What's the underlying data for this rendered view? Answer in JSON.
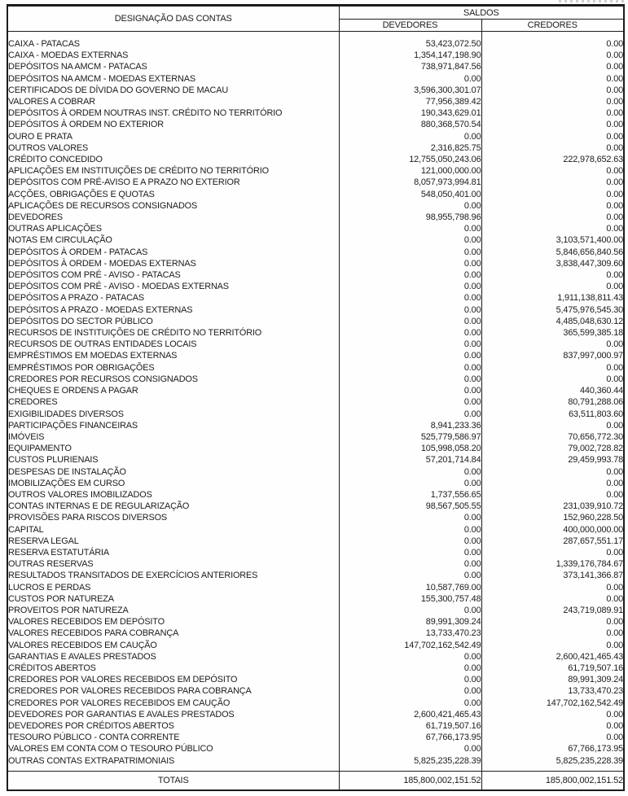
{
  "document": {
    "header": {
      "designacao": "DESIGNAÇÃO DAS CONTAS",
      "saldos": "SALDOS",
      "devedores": "DEVEDORES",
      "credores": "CREDORES"
    },
    "rows": [
      {
        "name": "CAIXA - PATACAS",
        "dev": "53,423,072.50",
        "cred": "0.00"
      },
      {
        "name": "CAIXA - MOEDAS EXTERNAS",
        "dev": "1,354,147,198.90",
        "cred": "0.00"
      },
      {
        "name": "DEPÓSITOS NA AMCM - PATACAS",
        "dev": "738,971,847.56",
        "cred": "0.00"
      },
      {
        "name": "DEPÓSITOS NA AMCM - MOEDAS EXTERNAS",
        "dev": "0.00",
        "cred": "0.00"
      },
      {
        "name": "CERTIFICADOS DE DÍVIDA DO GOVERNO DE MACAU",
        "dev": "3,596,300,301.07",
        "cred": "0.00"
      },
      {
        "name": "VALORES A COBRAR",
        "dev": "77,956,389.42",
        "cred": "0.00"
      },
      {
        "name": "DEPÓSITOS À ORDEM NOUTRAS INST. CRÉDITO NO TERRITÓRIO",
        "dev": "190,343,629.01",
        "cred": "0.00"
      },
      {
        "name": "DEPÓSITOS À ORDEM NO EXTERIOR",
        "dev": "880,368,570.54",
        "cred": "0.00"
      },
      {
        "name": "OURO E PRATA",
        "dev": "0.00",
        "cred": "0.00"
      },
      {
        "name": "OUTROS VALORES",
        "dev": "2,316,825.75",
        "cred": "0.00"
      },
      {
        "name": "CRÉDITO CONCEDIDO",
        "dev": "12,755,050,243.06",
        "cred": "222,978,652.63"
      },
      {
        "name": "APLICAÇÕES EM INSTITUIÇÕES DE CRÉDITO NO TERRITÓRIO",
        "dev": "121,000,000.00",
        "cred": "0.00"
      },
      {
        "name": "DEPÓSITOS COM PRÉ-AVISO E A PRAZO NO EXTERIOR",
        "dev": "8,057,973,994.81",
        "cred": "0.00"
      },
      {
        "name": "ACÇÕES, OBRIGAÇÕES E QUOTAS",
        "dev": "548,050,401.00",
        "cred": "0.00"
      },
      {
        "name": "APLICAÇÕES DE RECURSOS CONSIGNADOS",
        "dev": "0.00",
        "cred": "0.00"
      },
      {
        "name": "DEVEDORES",
        "dev": "98,955,798.96",
        "cred": "0.00"
      },
      {
        "name": "OUTRAS APLICAÇÕES",
        "dev": "0.00",
        "cred": "0.00"
      },
      {
        "name": "NOTAS EM CIRCULAÇÃO",
        "dev": "0.00",
        "cred": "3,103,571,400.00"
      },
      {
        "name": "DEPÓSITOS À ORDEM - PATACAS",
        "dev": "0.00",
        "cred": "5,846,656,840.56"
      },
      {
        "name": "DEPÓSITOS À ORDEM - MOEDAS EXTERNAS",
        "dev": "0.00",
        "cred": "3,838,447,309.60"
      },
      {
        "name": "DEPÓSITOS COM PRÉ - AVISO - PATACAS",
        "dev": "0.00",
        "cred": "0.00"
      },
      {
        "name": "DEPÓSITOS COM PRÉ - AVISO - MOEDAS EXTERNAS",
        "dev": "0.00",
        "cred": "0.00"
      },
      {
        "name": "DEPÓSITOS A PRAZO - PATACAS",
        "dev": "0.00",
        "cred": "1,911,138,811.43"
      },
      {
        "name": "DEPÓSITOS A PRAZO - MOEDAS EXTERNAS",
        "dev": "0.00",
        "cred": "5,475,976,545.30"
      },
      {
        "name": "DEPÓSITOS DO SECTOR PÚBLICO",
        "dev": "0.00",
        "cred": "4,485,048,630.12"
      },
      {
        "name": "RECURSOS DE INSTITUIÇÕES DE CRÉDITO NO TERRITÓRIO",
        "dev": "0.00",
        "cred": "365,599,385.18"
      },
      {
        "name": "RECURSOS DE OUTRAS ENTIDADES LOCAIS",
        "dev": "0.00",
        "cred": "0.00"
      },
      {
        "name": "EMPRÉSTIMOS EM MOEDAS EXTERNAS",
        "dev": "0.00",
        "cred": "837,997,000.97"
      },
      {
        "name": "EMPRÉSTIMOS POR OBRIGAÇÕES",
        "dev": "0.00",
        "cred": "0.00"
      },
      {
        "name": "CREDORES POR RECURSOS CONSIGNADOS",
        "dev": "0.00",
        "cred": "0.00"
      },
      {
        "name": "CHEQUES E ORDENS A PAGAR",
        "dev": "0.00",
        "cred": "440,360.44"
      },
      {
        "name": "CREDORES",
        "dev": "0.00",
        "cred": "80,791,288.06"
      },
      {
        "name": "EXIGIBILIDADES DIVERSOS",
        "dev": "0.00",
        "cred": "63,511,803.60"
      },
      {
        "name": "PARTICIPAÇÕES FINANCEIRAS",
        "dev": "8,941,233.36",
        "cred": "0.00"
      },
      {
        "name": "IMÓVEIS",
        "dev": "525,779,586.97",
        "cred": "70,656,772.30"
      },
      {
        "name": "EQUIPAMENTO",
        "dev": "105,998,058.20",
        "cred": "79,002,728.82"
      },
      {
        "name": "CUSTOS PLURIENAIS",
        "dev": "57,201,714.84",
        "cred": "29,459,993.78"
      },
      {
        "name": "DESPESAS DE INSTALAÇÃO",
        "dev": "0.00",
        "cred": "0.00"
      },
      {
        "name": "IMOBILIZAÇÕES EM CURSO",
        "dev": "0.00",
        "cred": "0.00"
      },
      {
        "name": "OUTROS VALORES IMOBILIZADOS",
        "dev": "1,737,556.65",
        "cred": "0.00"
      },
      {
        "name": "CONTAS INTERNAS E DE REGULARIZAÇÃO",
        "dev": "98,567,505.55",
        "cred": "231,039,910.72"
      },
      {
        "name": "PROVISÕES PARA RISCOS DIVERSOS",
        "dev": "0.00",
        "cred": "152,960,228.50"
      },
      {
        "name": "CAPITAL",
        "dev": "0.00",
        "cred": "400,000,000.00"
      },
      {
        "name": "RESERVA LEGAL",
        "dev": "0.00",
        "cred": "287,657,551.17"
      },
      {
        "name": "RESERVA ESTATUTÁRIA",
        "dev": "0.00",
        "cred": "0.00"
      },
      {
        "name": "OUTRAS RESERVAS",
        "dev": "0.00",
        "cred": "1,339,176,784.67"
      },
      {
        "name": "RESULTADOS TRANSITADOS DE EXERCÍCIOS ANTERIORES",
        "dev": "0.00",
        "cred": "373,141,366.87"
      },
      {
        "name": "LUCROS E PERDAS",
        "dev": "10,587,769.00",
        "cred": "0.00"
      },
      {
        "name": "CUSTOS POR NATUREZA",
        "dev": "155,300,757.48",
        "cred": "0.00"
      },
      {
        "name": "PROVEITOS POR NATUREZA",
        "dev": "0.00",
        "cred": "243,719,089.91"
      },
      {
        "name": "VALORES RECEBIDOS EM DEPÓSITO",
        "dev": "89,991,309.24",
        "cred": "0.00"
      },
      {
        "name": "VALORES RECEBIDOS PARA COBRANÇA",
        "dev": "13,733,470.23",
        "cred": "0.00"
      },
      {
        "name": "VALORES RECEBIDOS EM CAUÇÃO",
        "dev": "147,702,162,542.49",
        "cred": "0.00"
      },
      {
        "name": "GARANTIAS E AVALES PRESTADOS",
        "dev": "0.00",
        "cred": "2,600,421,465.43"
      },
      {
        "name": "CRÉDITOS ABERTOS",
        "dev": "0.00",
        "cred": "61,719,507.16"
      },
      {
        "name": "CREDORES POR VALORES RECEBIDOS EM DEPÓSITO",
        "dev": "0.00",
        "cred": "89,991,309.24"
      },
      {
        "name": "CREDORES POR VALORES RECEBIDOS PARA COBRANÇA",
        "dev": "0.00",
        "cred": "13,733,470.23"
      },
      {
        "name": "CREDORES POR VALORES RECEBIDOS EM CAUÇÃO",
        "dev": "0.00",
        "cred": "147,702,162,542.49"
      },
      {
        "name": "DEVEDORES POR GARANTIAS E AVALES PRESTADOS",
        "dev": "2,600,421,465.43",
        "cred": "0.00"
      },
      {
        "name": "DEVEDORES POR CRÉDITOS ABERTOS",
        "dev": "61,719,507.16",
        "cred": "0.00"
      },
      {
        "name": "TESOURO PÚBLICO - CONTA CORRENTE",
        "dev": "67,766,173.95",
        "cred": "0.00"
      },
      {
        "name": "VALORES EM CONTA COM O TESOURO PÚBLICO",
        "dev": "0.00",
        "cred": "67,766,173.95"
      },
      {
        "name": "OUTRAS CONTAS EXTRAPATRIMONIAIS",
        "dev": "5,825,235,228.39",
        "cred": "5,825,235,228.39"
      }
    ],
    "totals": {
      "label": "TOTAIS",
      "dev": "185,800,002,151.52",
      "cred": "185,800,002,151.52"
    },
    "colors": {
      "ink": "#1b1b1b",
      "paper": "#fefefe",
      "border": "#1c1c1c"
    }
  }
}
